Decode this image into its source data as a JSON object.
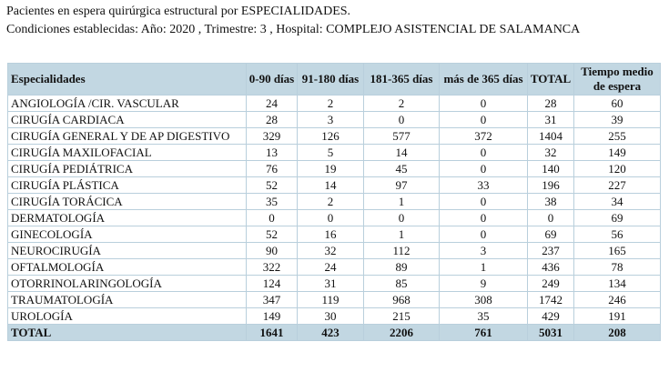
{
  "header": {
    "line1": "Pacientes en espera quirúrgica estructural por ESPECIALIDADES.",
    "line2": "Condiciones establecidas: Año: 2020 , Trimestre: 3 , Hospital: COMPLEJO ASISTENCIAL DE SALAMANCA"
  },
  "table": {
    "columns": [
      "Especialidades",
      "0-90 días",
      "91-180 días",
      "181-365 días",
      "más de 365 días",
      "TOTAL",
      "Tiempo medio de espera"
    ],
    "rows": [
      [
        "ANGIOLOGÍA /CIR. VASCULAR",
        "24",
        "2",
        "2",
        "0",
        "28",
        "60"
      ],
      [
        "CIRUGÍA CARDIACA",
        "28",
        "3",
        "0",
        "0",
        "31",
        "39"
      ],
      [
        "CIRUGÍA GENERAL Y DE AP DIGESTIVO",
        "329",
        "126",
        "577",
        "372",
        "1404",
        "255"
      ],
      [
        "CIRUGÍA MAXILOFACIAL",
        "13",
        "5",
        "14",
        "0",
        "32",
        "149"
      ],
      [
        "CIRUGÍA PEDIÁTRICA",
        "76",
        "19",
        "45",
        "0",
        "140",
        "120"
      ],
      [
        "CIRUGÍA PLÁSTICA",
        "52",
        "14",
        "97",
        "33",
        "196",
        "227"
      ],
      [
        "CIRUGÍA TORÁCICA",
        "35",
        "2",
        "1",
        "0",
        "38",
        "34"
      ],
      [
        "DERMATOLOGÍA",
        "0",
        "0",
        "0",
        "0",
        "0",
        "69"
      ],
      [
        "GINECOLOGÍA",
        "52",
        "16",
        "1",
        "0",
        "69",
        "56"
      ],
      [
        "NEUROCIRUGÍA",
        "90",
        "32",
        "112",
        "3",
        "237",
        "165"
      ],
      [
        "OFTALMOLOGÍA",
        "322",
        "24",
        "89",
        "1",
        "436",
        "78"
      ],
      [
        "OTORRINOLARINGOLOGÍA",
        "124",
        "31",
        "85",
        "9",
        "249",
        "134"
      ],
      [
        "TRAUMATOLOGÍA",
        "347",
        "119",
        "968",
        "308",
        "1742",
        "246"
      ],
      [
        "UROLOGÍA",
        "149",
        "30",
        "215",
        "35",
        "429",
        "191"
      ]
    ],
    "total": [
      "TOTAL",
      "1641",
      "423",
      "2206",
      "761",
      "5031",
      "208"
    ]
  }
}
